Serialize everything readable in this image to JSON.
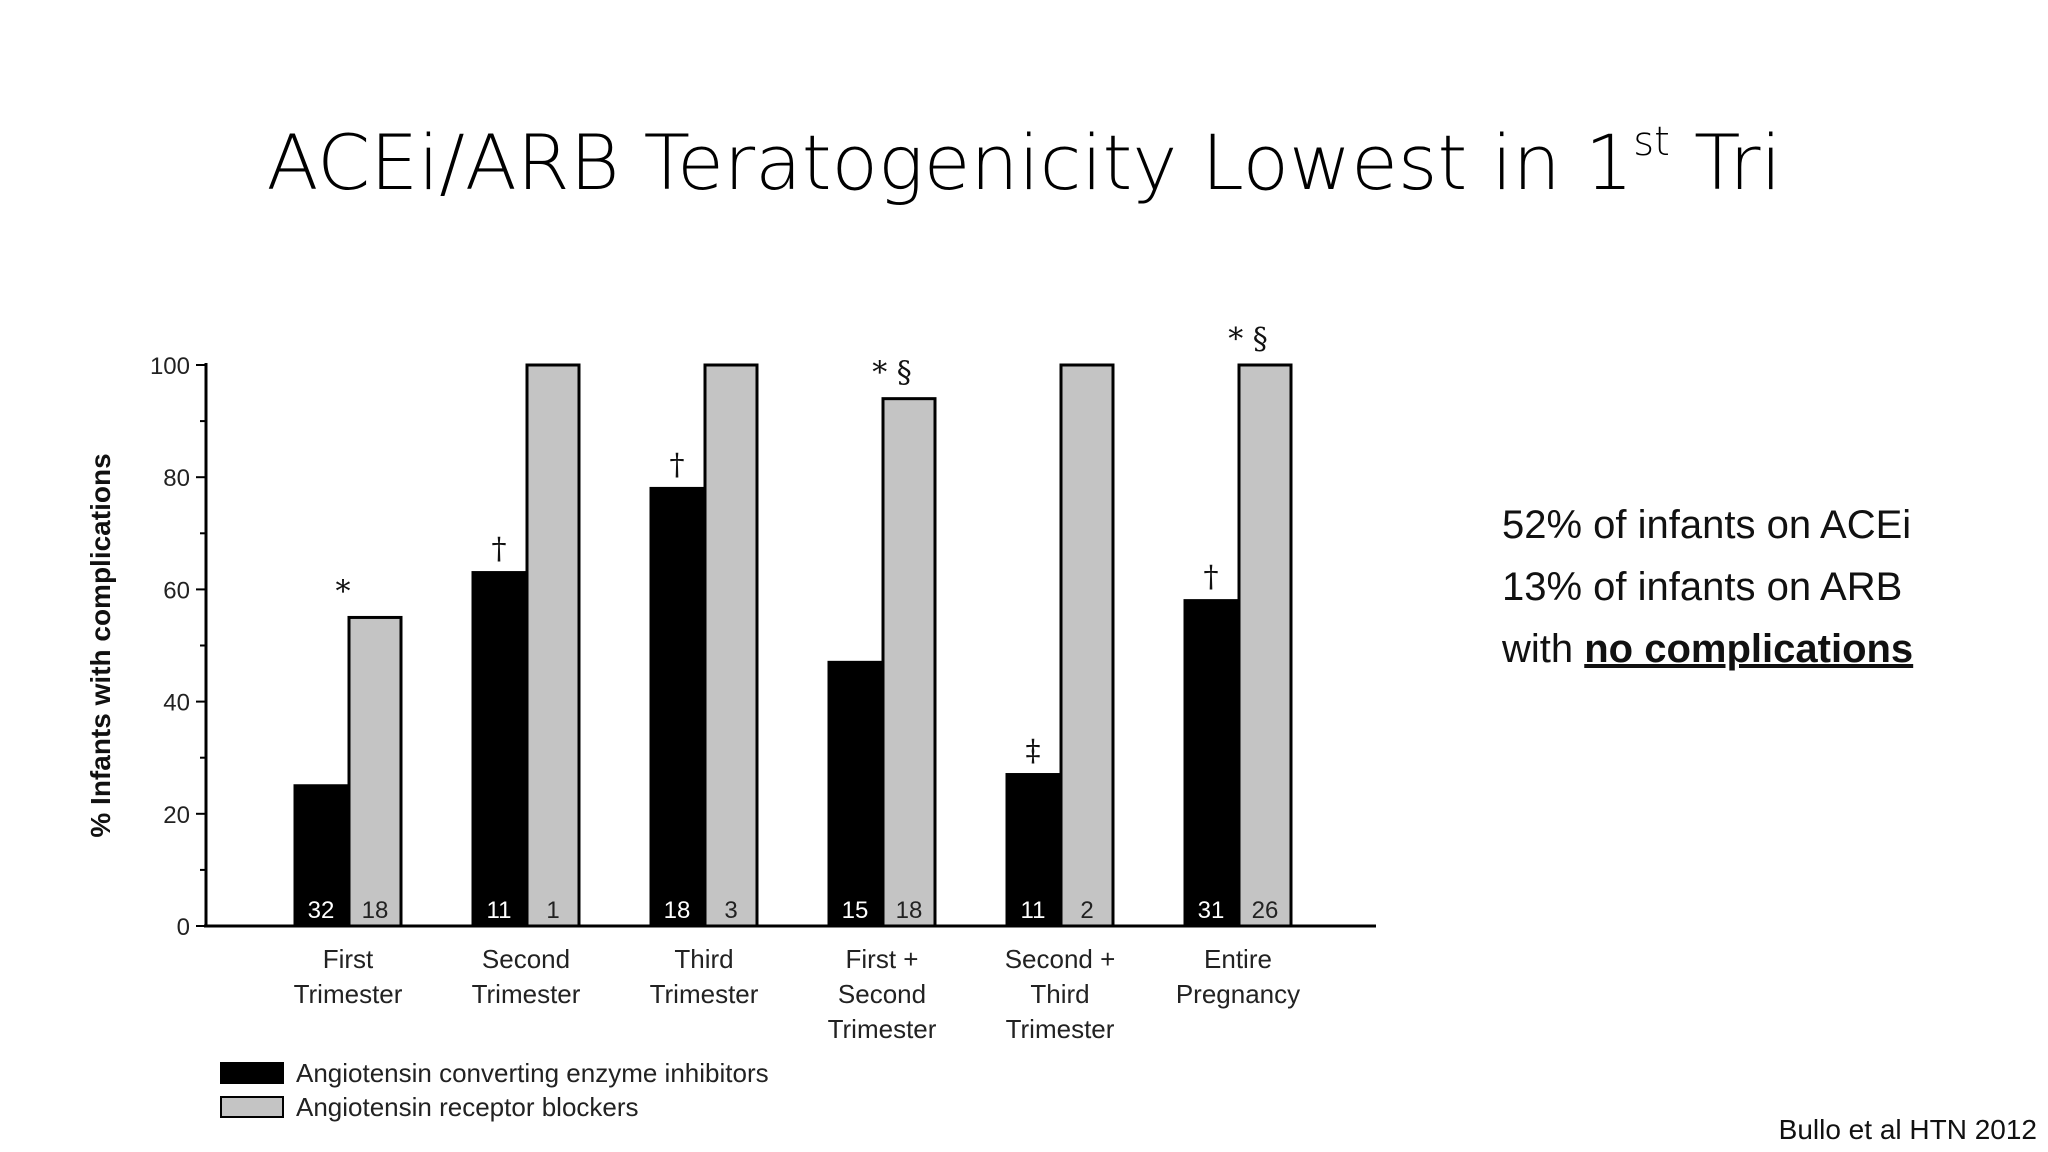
{
  "slide": {
    "title_main": "ACEi/ARB Teratogenicity Lowest in 1",
    "title_sup": "st",
    "title_end": " Tri",
    "side_text": {
      "line1": "52% of infants on ACEi",
      "line2": "13% of infants on ARB",
      "line3_prefix": "with ",
      "line3_emphasis": "no complications"
    },
    "citation": "Bullo et al HTN 2012"
  },
  "chart_data": {
    "type": "bar",
    "title": "",
    "xlabel": "",
    "ylabel": "% Infants with complications",
    "ylim": [
      0,
      100
    ],
    "yticks": [
      "0",
      "20",
      "40",
      "60",
      "80",
      "100"
    ],
    "categories": [
      [
        "First",
        "Trimester"
      ],
      [
        "Second",
        "Trimester"
      ],
      [
        "Third",
        "Trimester"
      ],
      [
        "First +",
        "Second",
        "Trimester"
      ],
      [
        "Second +",
        "Third",
        "Trimester"
      ],
      [
        "Entire",
        "Pregnancy"
      ]
    ],
    "series": [
      {
        "name": "Angiotensin converting enzyme inhibitors",
        "color": "#000000",
        "label_color": "#ffffff",
        "values": [
          25,
          63,
          78,
          47,
          27,
          58
        ],
        "n": [
          "32",
          "11",
          "18",
          "15",
          "11",
          "31"
        ],
        "markers": [
          "",
          "†",
          "†",
          "",
          "‡",
          "†"
        ]
      },
      {
        "name": "Angiotensin receptor blockers",
        "color": "#c4c4c4",
        "label_color": "#222222",
        "values": [
          55,
          100,
          100,
          94,
          100,
          100
        ],
        "n": [
          "18",
          "1",
          "3",
          "18",
          "2",
          "26"
        ],
        "markers": [
          "",
          "",
          "",
          "",
          "",
          ""
        ]
      }
    ],
    "group_markers": [
      "*",
      "",
      "",
      "* §",
      "",
      "* §"
    ],
    "legend_position": "bottom-left"
  }
}
